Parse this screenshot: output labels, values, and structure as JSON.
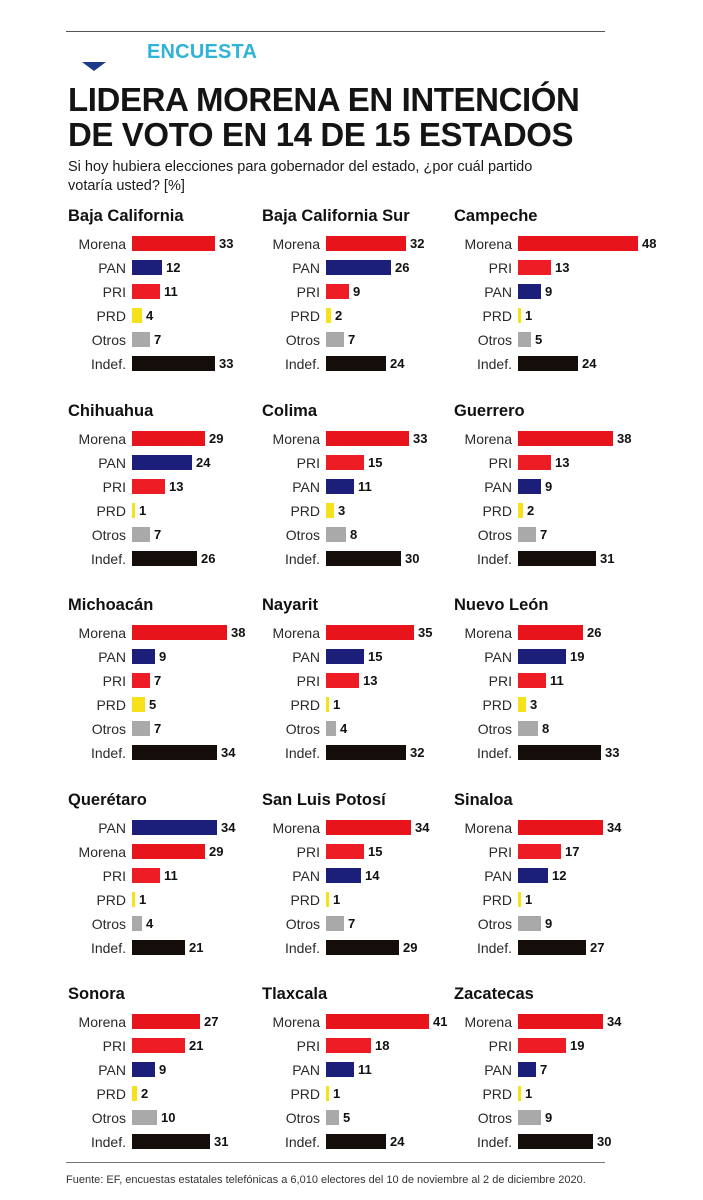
{
  "header": {
    "section": "ENCUESTA",
    "title_line1": "LIDERA MORENA EN INTENCIÓN",
    "title_line2": "DE VOTO EN 14 DE 15 ESTADOS",
    "question_line1": "Si hoy hubiera elecciones para gobernador del estado, ¿por cuál partido",
    "question_line2": "votaría usted? [%]"
  },
  "footer": {
    "source": "Fuente: EF, encuestas estatales telefónicas a 6,010 electores del 10 de noviembre al 2 de diciembre 2020."
  },
  "colors": {
    "Morena": "#e8141c",
    "PAN": "#1b1f7a",
    "PRI": "#ee1c24",
    "PRD": "#f5e21a",
    "Otros": "#a9a9a9",
    "Indef.": "#150d0a",
    "accent": "#2fb3d8"
  },
  "chart_data": {
    "type": "bar",
    "orientation": "horizontal",
    "unit": "%",
    "scale_max": 48,
    "panels": [
      {
        "state": "Baja California",
        "labels": [
          "Morena",
          "PAN",
          "PRI",
          "PRD",
          "Otros",
          "Indef."
        ],
        "values": [
          33,
          12,
          11,
          4,
          7,
          33
        ]
      },
      {
        "state": "Baja California Sur",
        "labels": [
          "Morena",
          "PAN",
          "PRI",
          "PRD",
          "Otros",
          "Indef."
        ],
        "values": [
          32,
          26,
          9,
          2,
          7,
          24
        ]
      },
      {
        "state": "Campeche",
        "labels": [
          "Morena",
          "PRI",
          "PAN",
          "PRD",
          "Otros",
          "Indef."
        ],
        "values": [
          48,
          13,
          9,
          1,
          5,
          24
        ]
      },
      {
        "state": "Chihuahua",
        "labels": [
          "Morena",
          "PAN",
          "PRI",
          "PRD",
          "Otros",
          "Indef."
        ],
        "values": [
          29,
          24,
          13,
          1,
          7,
          26
        ]
      },
      {
        "state": "Colima",
        "labels": [
          "Morena",
          "PRI",
          "PAN",
          "PRD",
          "Otros",
          "Indef."
        ],
        "values": [
          33,
          15,
          11,
          3,
          8,
          30
        ]
      },
      {
        "state": "Guerrero",
        "labels": [
          "Morena",
          "PRI",
          "PAN",
          "PRD",
          "Otros",
          "Indef."
        ],
        "values": [
          38,
          13,
          9,
          2,
          7,
          31
        ]
      },
      {
        "state": "Michoacán",
        "labels": [
          "Morena",
          "PAN",
          "PRI",
          "PRD",
          "Otros",
          "Indef."
        ],
        "values": [
          38,
          9,
          7,
          5,
          7,
          34
        ]
      },
      {
        "state": "Nayarit",
        "labels": [
          "Morena",
          "PAN",
          "PRI",
          "PRD",
          "Otros",
          "Indef."
        ],
        "values": [
          35,
          15,
          13,
          1,
          4,
          32
        ]
      },
      {
        "state": "Nuevo León",
        "labels": [
          "Morena",
          "PAN",
          "PRI",
          "PRD",
          "Otros",
          "Indef."
        ],
        "values": [
          26,
          19,
          11,
          3,
          8,
          33
        ]
      },
      {
        "state": "Querétaro",
        "labels": [
          "PAN",
          "Morena",
          "PRI",
          "PRD",
          "Otros",
          "Indef."
        ],
        "values": [
          34,
          29,
          11,
          1,
          4,
          21
        ]
      },
      {
        "state": "San Luis Potosí",
        "labels": [
          "Morena",
          "PRI",
          "PAN",
          "PRD",
          "Otros",
          "Indef."
        ],
        "values": [
          34,
          15,
          14,
          1,
          7,
          29
        ]
      },
      {
        "state": "Sinaloa",
        "labels": [
          "Morena",
          "PRI",
          "PAN",
          "PRD",
          "Otros",
          "Indef."
        ],
        "values": [
          34,
          17,
          12,
          1,
          9,
          27
        ]
      },
      {
        "state": "Sonora",
        "labels": [
          "Morena",
          "PRI",
          "PAN",
          "PRD",
          "Otros",
          "Indef."
        ],
        "values": [
          27,
          21,
          9,
          2,
          10,
          31
        ]
      },
      {
        "state": "Tlaxcala",
        "labels": [
          "Morena",
          "PRI",
          "PAN",
          "PRD",
          "Otros",
          "Indef."
        ],
        "values": [
          41,
          18,
          11,
          1,
          5,
          24
        ]
      },
      {
        "state": "Zacatecas",
        "labels": [
          "Morena",
          "PRI",
          "PAN",
          "PRD",
          "Otros",
          "Indef."
        ],
        "values": [
          34,
          19,
          7,
          1,
          9,
          30
        ]
      }
    ]
  }
}
